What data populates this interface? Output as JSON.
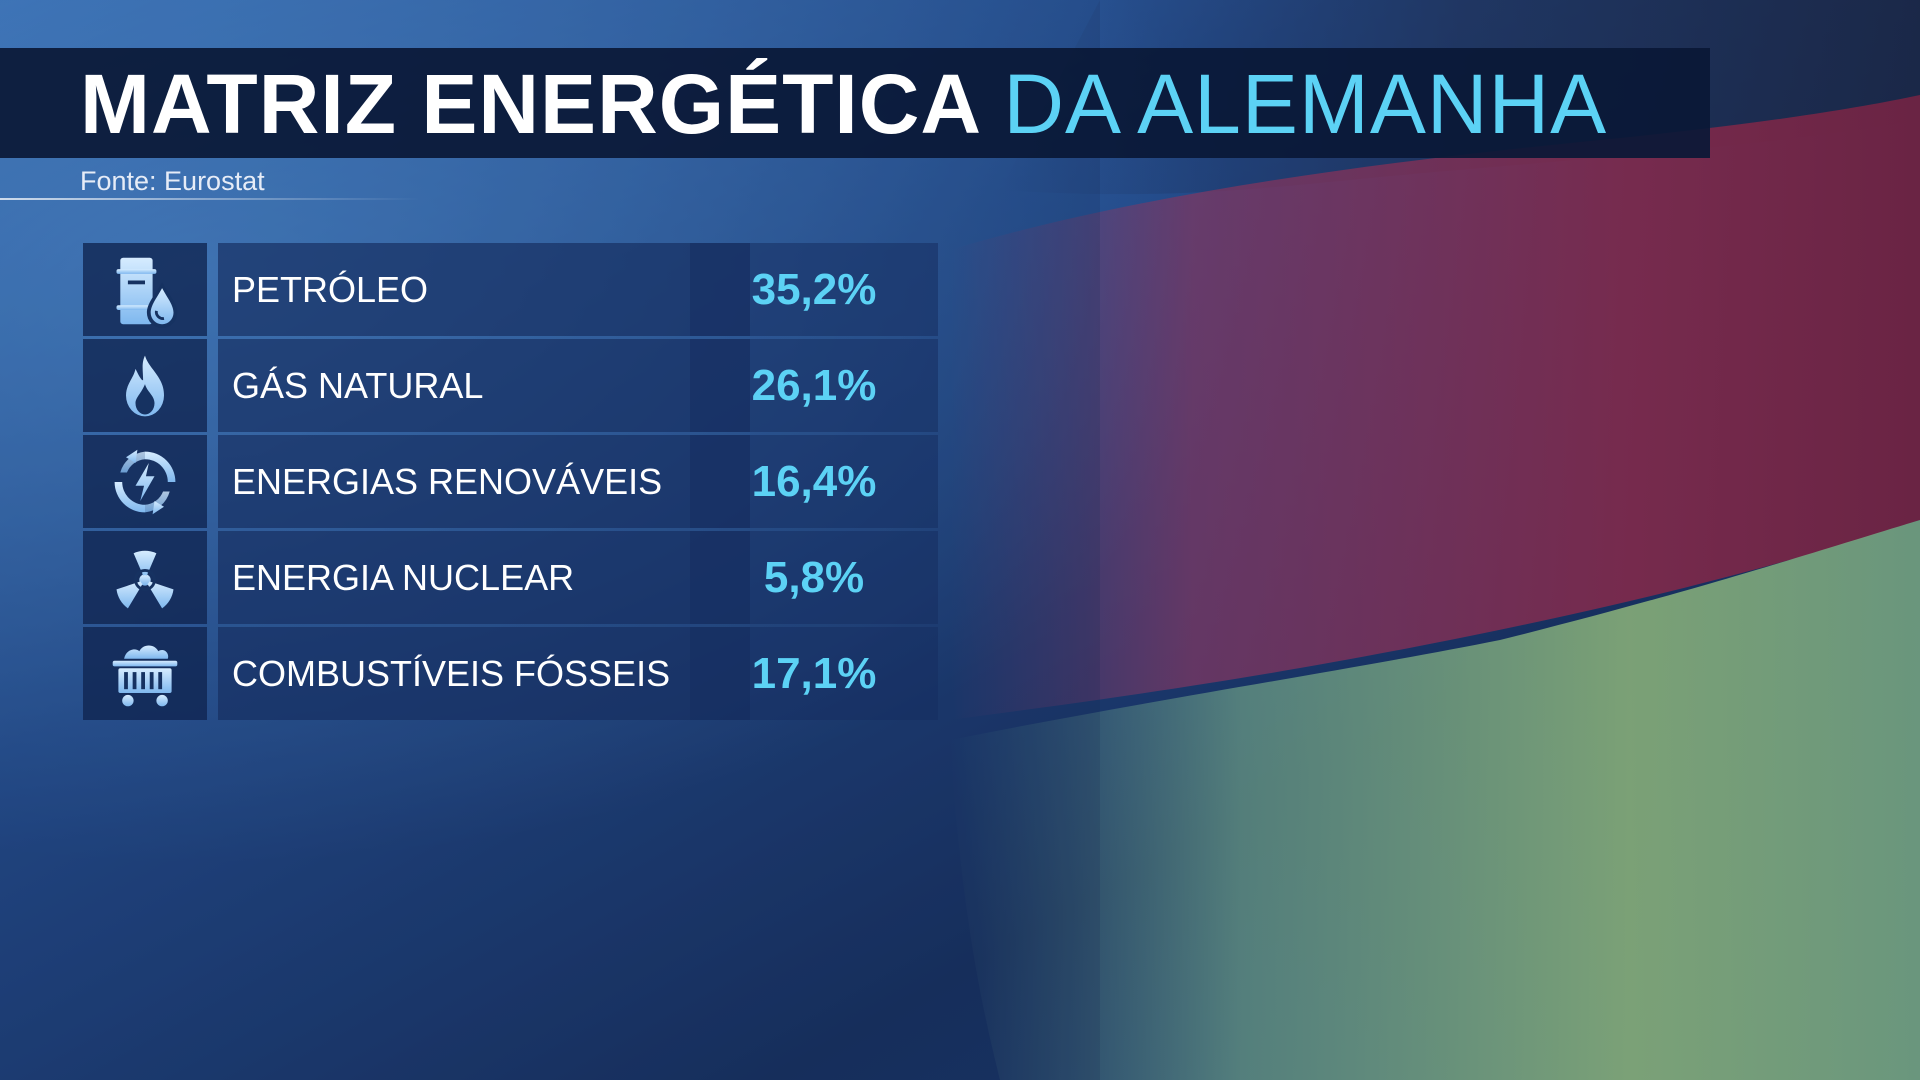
{
  "header": {
    "title_white": "MATRIZ ENERGÉTICA",
    "title_blue": "DA ALEMANHA",
    "source": "Fonte: Eurostat"
  },
  "colors": {
    "accent": "#5cd2f5",
    "title_bar": "#0a1836",
    "background": "#1a2f5e"
  },
  "table": {
    "rows": [
      {
        "icon": "oil-barrel-drop-icon",
        "label": "PETRÓLEO",
        "value": "35,2%"
      },
      {
        "icon": "flame-icon",
        "label": "GÁS NATURAL",
        "value": "26,1%"
      },
      {
        "icon": "renewable-energy-icon",
        "label": "ENERGIAS RENOVÁVEIS",
        "value": "16,4%"
      },
      {
        "icon": "radiation-icon",
        "label": "ENERGIA NUCLEAR",
        "value": "5,8%"
      },
      {
        "icon": "coal-cart-icon",
        "label": "COMBUSTÍVEIS FÓSSEIS",
        "value": "17,1%"
      }
    ]
  }
}
